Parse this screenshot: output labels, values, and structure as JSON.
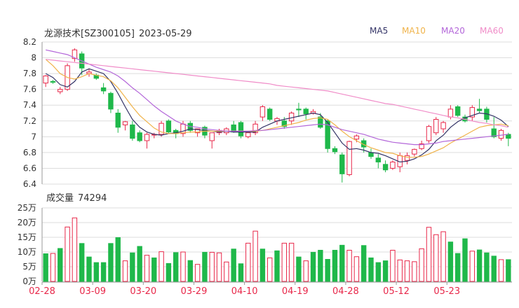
{
  "header": {
    "stock_name": "龙源技术[SZ300105]",
    "date": "2023-05-29"
  },
  "legend": [
    {
      "label": "MA5",
      "color": "#333366"
    },
    {
      "label": "MA10",
      "color": "#f0b34a"
    },
    {
      "label": "MA20",
      "color": "#b366d9"
    },
    {
      "label": "MA60",
      "color": "#f08cc8"
    }
  ],
  "volume_header": {
    "label": "成交量",
    "value": "74294"
  },
  "colors": {
    "up": "#e8284a",
    "down": "#1fb84a",
    "axis": "#999999",
    "grid": "#dddddd",
    "date_label": "#e8284a"
  },
  "chart_data": [
    {
      "type": "candlestick",
      "title": "龙源技术[SZ300105] 2023-05-29",
      "ylim": [
        6.4,
        8.2
      ],
      "y_ticks": [
        "8.2",
        "8",
        "7.8",
        "7.6",
        "7.4",
        "7.2",
        "7",
        "6.8",
        "6.6",
        "6.4"
      ],
      "x_tick_labels": [
        {
          "label": "02-28",
          "index": 0
        },
        {
          "label": "03-09",
          "index": 7
        },
        {
          "label": "03-20",
          "index": 14
        },
        {
          "label": "03-29",
          "index": 21
        },
        {
          "label": "04-10",
          "index": 28
        },
        {
          "label": "04-19",
          "index": 35
        },
        {
          "label": "04-28",
          "index": 42
        },
        {
          "label": "05-12",
          "index": 49
        },
        {
          "label": "05-23",
          "index": 56
        }
      ],
      "ohlc": [
        [
          7.68,
          7.78,
          7.63,
          7.77
        ],
        [
          7.7,
          7.72,
          7.67,
          7.69
        ],
        [
          7.57,
          7.63,
          7.54,
          7.6
        ],
        [
          7.6,
          7.93,
          7.58,
          7.9
        ],
        [
          7.99,
          8.12,
          7.95,
          8.1
        ],
        [
          8.05,
          8.08,
          7.78,
          7.87
        ],
        [
          7.8,
          7.86,
          7.76,
          7.82
        ],
        [
          7.78,
          7.8,
          7.72,
          7.74
        ],
        [
          7.62,
          7.68,
          7.54,
          7.58
        ],
        [
          7.55,
          7.57,
          7.3,
          7.35
        ],
        [
          7.3,
          7.35,
          7.05,
          7.12
        ],
        [
          7.15,
          7.2,
          7.08,
          7.19
        ],
        [
          7.15,
          7.2,
          6.95,
          6.98
        ],
        [
          7.05,
          7.08,
          6.93,
          6.95
        ],
        [
          6.95,
          7.05,
          6.85,
          7.03
        ],
        [
          7.02,
          7.05,
          6.98,
          7.03
        ],
        [
          7.03,
          7.2,
          7.0,
          7.17
        ],
        [
          7.2,
          7.22,
          7.04,
          7.06
        ],
        [
          7.08,
          7.1,
          6.98,
          7.04
        ],
        [
          7.04,
          7.2,
          7.0,
          7.16
        ],
        [
          7.17,
          7.2,
          7.05,
          7.08
        ],
        [
          7.05,
          7.1,
          7.0,
          7.1
        ],
        [
          7.12,
          7.14,
          6.98,
          7.02
        ],
        [
          6.95,
          7.05,
          6.85,
          7.05
        ],
        [
          7.05,
          7.1,
          7.02,
          7.08
        ],
        [
          7.05,
          7.12,
          7.02,
          7.1
        ],
        [
          7.15,
          7.2,
          7.05,
          7.06
        ],
        [
          7.18,
          7.2,
          6.98,
          7.01
        ],
        [
          7.0,
          7.05,
          6.98,
          7.05
        ],
        [
          7.05,
          7.2,
          7.02,
          7.16
        ],
        [
          7.25,
          7.4,
          7.2,
          7.38
        ],
        [
          7.35,
          7.37,
          7.2,
          7.22
        ],
        [
          7.2,
          7.25,
          7.15,
          7.23
        ],
        [
          7.2,
          7.25,
          7.1,
          7.13
        ],
        [
          7.2,
          7.32,
          7.15,
          7.3
        ],
        [
          7.35,
          7.43,
          7.25,
          7.34
        ],
        [
          7.35,
          7.37,
          7.22,
          7.29
        ],
        [
          7.3,
          7.35,
          7.28,
          7.32
        ],
        [
          7.25,
          7.3,
          7.1,
          7.12
        ],
        [
          7.2,
          7.22,
          6.8,
          6.85
        ],
        [
          6.85,
          6.88,
          6.78,
          6.81
        ],
        [
          6.77,
          6.8,
          6.42,
          6.53
        ],
        [
          6.52,
          6.95,
          6.5,
          6.94
        ],
        [
          6.97,
          7.03,
          6.93,
          7.01
        ],
        [
          6.95,
          6.98,
          6.8,
          6.87
        ],
        [
          6.8,
          6.85,
          6.72,
          6.75
        ],
        [
          6.73,
          6.78,
          6.6,
          6.68
        ],
        [
          6.65,
          6.7,
          6.55,
          6.58
        ],
        [
          6.6,
          6.7,
          6.58,
          6.68
        ],
        [
          6.62,
          6.8,
          6.55,
          6.76
        ],
        [
          6.7,
          6.8,
          6.65,
          6.76
        ],
        [
          6.78,
          6.85,
          6.75,
          6.84
        ],
        [
          6.85,
          6.95,
          6.83,
          6.91
        ],
        [
          6.95,
          7.15,
          6.92,
          7.13
        ],
        [
          7.05,
          7.25,
          7.02,
          7.22
        ],
        [
          7.1,
          7.2,
          7.05,
          7.18
        ],
        [
          7.25,
          7.4,
          7.22,
          7.35
        ],
        [
          7.38,
          7.4,
          7.25,
          7.27
        ],
        [
          7.25,
          7.28,
          7.18,
          7.2
        ],
        [
          7.25,
          7.4,
          7.2,
          7.37
        ],
        [
          7.35,
          7.48,
          7.3,
          7.33
        ],
        [
          7.35,
          7.38,
          7.18,
          7.22
        ],
        [
          7.1,
          7.25,
          6.98,
          7.0
        ],
        [
          6.98,
          7.1,
          6.95,
          7.08
        ],
        [
          7.03,
          7.05,
          6.88,
          6.98
        ]
      ],
      "series": [
        {
          "name": "MA5",
          "values": [
            7.8,
            7.75,
            7.66,
            7.63,
            7.7,
            7.82,
            7.86,
            7.83,
            7.8,
            7.7,
            7.55,
            7.38,
            7.22,
            7.12,
            7.06,
            7.03,
            7.02,
            7.04,
            7.05,
            7.07,
            7.1,
            7.09,
            7.08,
            7.07,
            7.06,
            7.07,
            7.06,
            7.06,
            7.06,
            7.06,
            7.12,
            7.16,
            7.2,
            7.22,
            7.24,
            7.26,
            7.28,
            7.3,
            7.28,
            7.18,
            7.05,
            6.92,
            6.84,
            6.85,
            6.83,
            6.8,
            6.79,
            6.76,
            6.72,
            6.68,
            6.69,
            6.72,
            6.77,
            6.84,
            6.95,
            7.02,
            7.12,
            7.19,
            7.24,
            7.27,
            7.3,
            7.29,
            7.26,
            7.21,
            7.13
          ]
        },
        {
          "name": "MA10",
          "values": [
            7.98,
            7.9,
            7.8,
            7.75,
            7.73,
            7.76,
            7.8,
            7.78,
            7.76,
            7.71,
            7.62,
            7.5,
            7.38,
            7.27,
            7.19,
            7.11,
            7.06,
            7.04,
            7.04,
            7.05,
            7.06,
            7.06,
            7.07,
            7.07,
            7.07,
            7.07,
            7.07,
            7.07,
            7.07,
            7.07,
            7.08,
            7.1,
            7.12,
            7.14,
            7.16,
            7.18,
            7.21,
            7.23,
            7.24,
            7.22,
            7.15,
            7.07,
            7.0,
            6.95,
            6.9,
            6.86,
            6.83,
            6.8,
            6.79,
            6.76,
            6.74,
            6.74,
            6.75,
            6.78,
            6.82,
            6.86,
            6.92,
            6.97,
            7.02,
            7.07,
            7.12,
            7.14,
            7.15,
            7.16,
            7.14
          ]
        },
        {
          "name": "MA20",
          "values": [
            8.1,
            8.08,
            8.06,
            8.04,
            8.0,
            7.96,
            7.92,
            7.88,
            7.85,
            7.82,
            7.77,
            7.7,
            7.62,
            7.55,
            7.47,
            7.39,
            7.32,
            7.26,
            7.2,
            7.16,
            7.13,
            7.12,
            7.1,
            7.09,
            7.08,
            7.07,
            7.07,
            7.07,
            7.07,
            7.08,
            7.08,
            7.09,
            7.1,
            7.11,
            7.12,
            7.13,
            7.14,
            7.15,
            7.16,
            7.15,
            7.12,
            7.09,
            7.07,
            7.05,
            7.03,
            7.0,
            6.97,
            6.95,
            6.93,
            6.92,
            6.91,
            6.9,
            6.9,
            6.91,
            6.92,
            6.94,
            6.95,
            6.96,
            6.97,
            6.98,
            6.99,
            7.0,
            7.01,
            7.02,
            7.03
          ]
        },
        {
          "name": "MA60",
          "values": [
            7.98,
            7.97,
            7.96,
            7.95,
            7.94,
            7.93,
            7.92,
            7.91,
            7.9,
            7.89,
            7.88,
            7.87,
            7.86,
            7.85,
            7.84,
            7.83,
            7.82,
            7.81,
            7.8,
            7.79,
            7.78,
            7.77,
            7.76,
            7.75,
            7.74,
            7.73,
            7.72,
            7.71,
            7.7,
            7.69,
            7.68,
            7.67,
            7.65,
            7.64,
            7.63,
            7.62,
            7.61,
            7.6,
            7.59,
            7.58,
            7.56,
            7.54,
            7.52,
            7.5,
            7.48,
            7.46,
            7.44,
            7.42,
            7.41,
            7.39,
            7.37,
            7.35,
            7.33,
            7.31,
            7.29,
            7.27,
            7.25,
            7.24,
            7.22,
            7.2,
            7.18,
            7.17,
            7.15,
            7.14,
            7.12
          ]
        }
      ]
    },
    {
      "type": "bar",
      "title": "成交量 74294",
      "unit_label": "万",
      "ylim": [
        0,
        25
      ],
      "y_ticks": [
        "25万",
        "20万",
        "15万",
        "10万",
        "5万",
        "0万"
      ],
      "values": [
        9.4,
        9.5,
        11.2,
        18.5,
        21.6,
        12.9,
        8.3,
        6.4,
        6.4,
        12.9,
        14.9,
        7,
        9.7,
        11.9,
        8.9,
        8,
        10.1,
        6.1,
        9.8,
        10,
        7.1,
        5.8,
        9.9,
        9.9,
        9.7,
        6.6,
        11,
        6,
        13,
        17.1,
        11,
        8,
        10.4,
        13,
        13,
        8.3,
        7,
        9.9,
        10.6,
        7.5,
        10.6,
        12.3,
        10.6,
        8.4,
        12.2,
        8,
        6.4,
        7,
        10.6,
        7.3,
        7,
        6.7,
        11.1,
        18.4,
        15.9,
        16.9,
        13.4,
        9.5,
        14.5,
        10.3,
        10.7,
        9.7,
        8.6,
        7.4,
        7.4
      ],
      "direction": [
        "down",
        "up",
        "down",
        "up",
        "up",
        "down",
        "down",
        "down",
        "down",
        "down",
        "down",
        "up",
        "down",
        "down",
        "up",
        "down",
        "up",
        "down",
        "down",
        "up",
        "down",
        "up",
        "down",
        "up",
        "up",
        "up",
        "down",
        "down",
        "up",
        "up",
        "down",
        "up",
        "down",
        "up",
        "up",
        "down",
        "up",
        "down",
        "down",
        "down",
        "down",
        "down",
        "up",
        "up",
        "down",
        "down",
        "down",
        "down",
        "up",
        "up",
        "up",
        "up",
        "up",
        "up",
        "up",
        "up",
        "down",
        "down",
        "down",
        "up",
        "down",
        "down",
        "down",
        "up",
        "down"
      ]
    }
  ]
}
